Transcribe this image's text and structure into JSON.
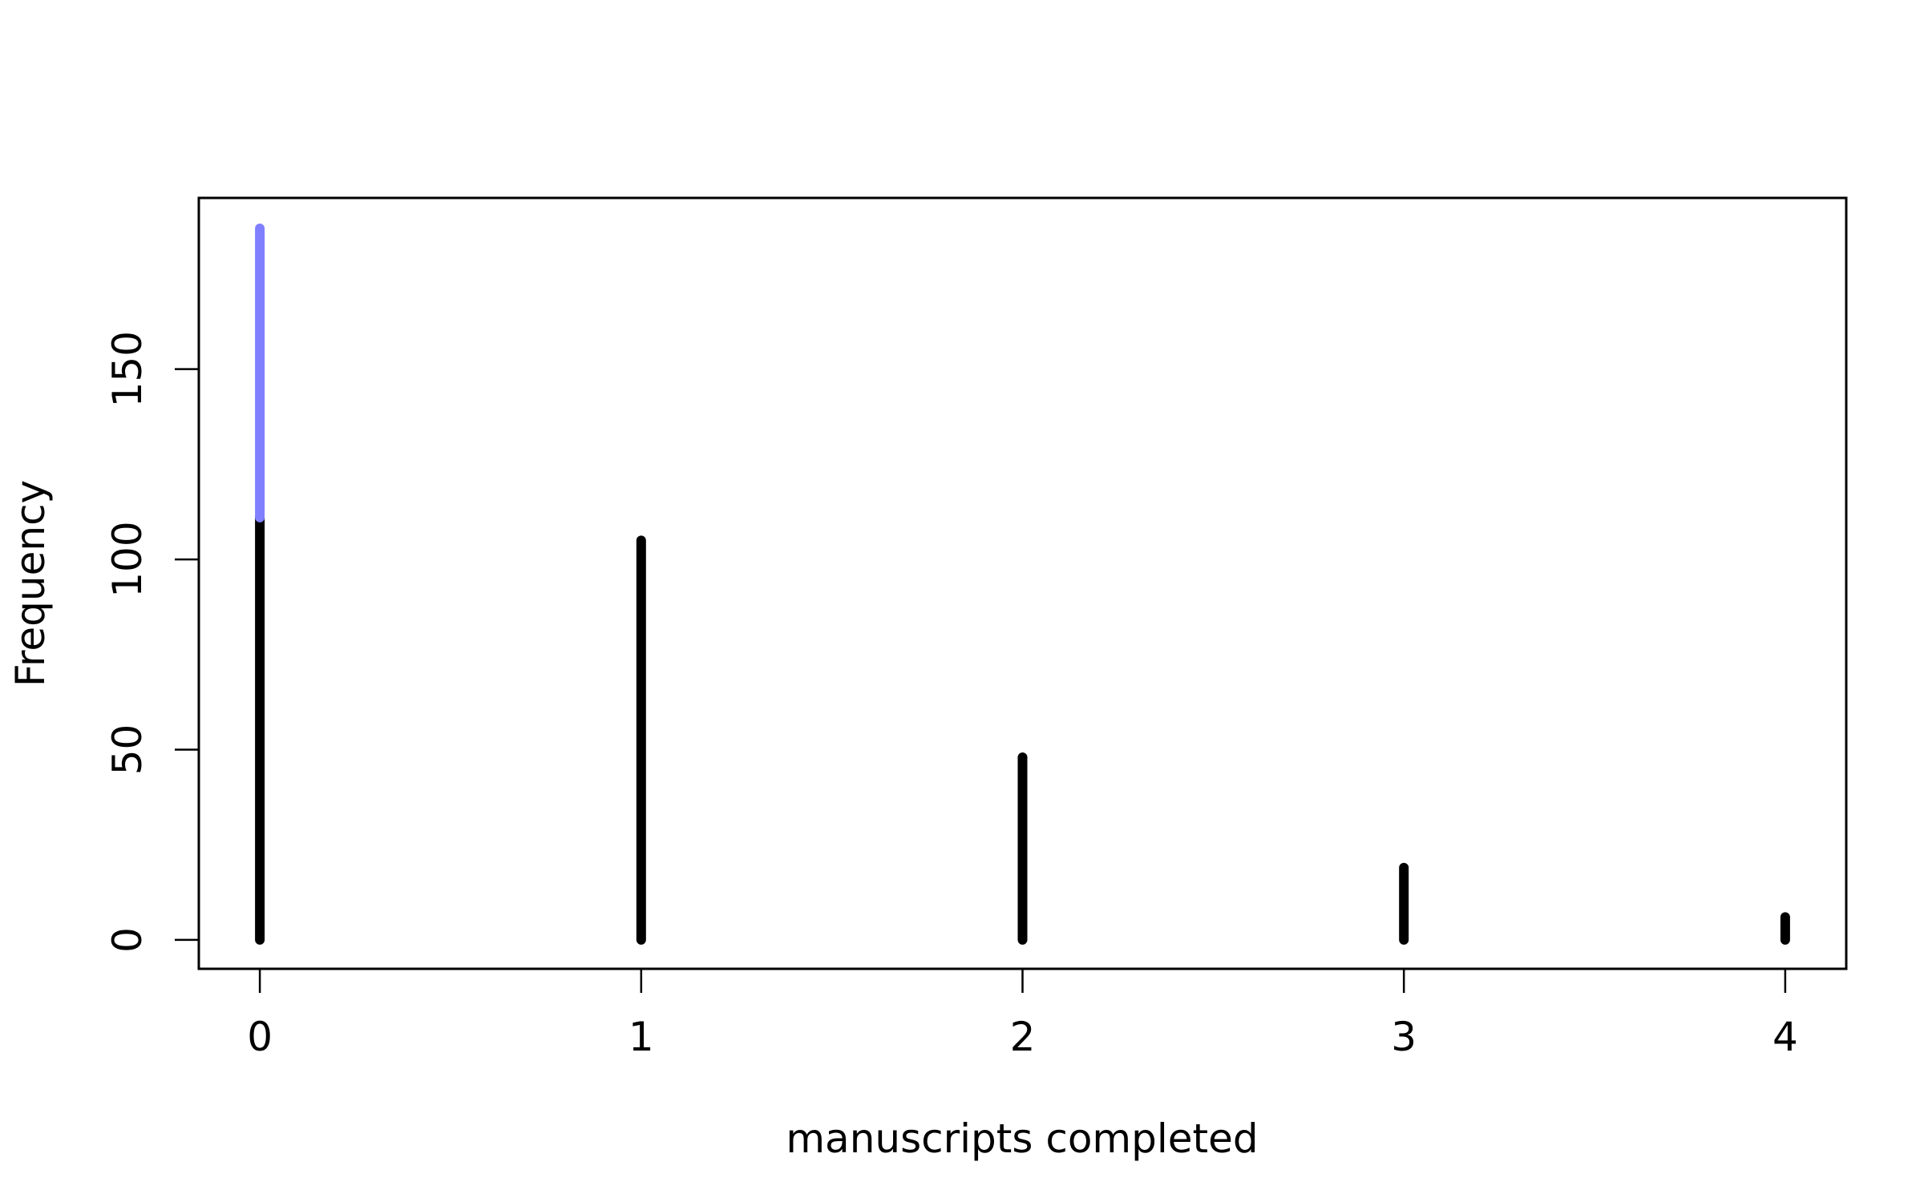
{
  "chart_data": {
    "type": "bar",
    "title": "",
    "xlabel": "manuscripts completed",
    "ylabel": "Frequency",
    "x": [
      0,
      1,
      2,
      3,
      4
    ],
    "xticks": [
      "0",
      "1",
      "2",
      "3",
      "4"
    ],
    "yticks": [
      "0",
      "50",
      "100",
      "150"
    ],
    "xlim": [
      -0.16,
      4.16
    ],
    "ylim": [
      -7.6,
      195
    ],
    "grid": false,
    "legend": "none",
    "series": [
      {
        "role": "base",
        "color": "#000000",
        "values": [
          111,
          105,
          48,
          19,
          6
        ]
      },
      {
        "role": "excess",
        "color": "#8080ff",
        "values": [
          76,
          0,
          0,
          0,
          0
        ]
      }
    ]
  }
}
